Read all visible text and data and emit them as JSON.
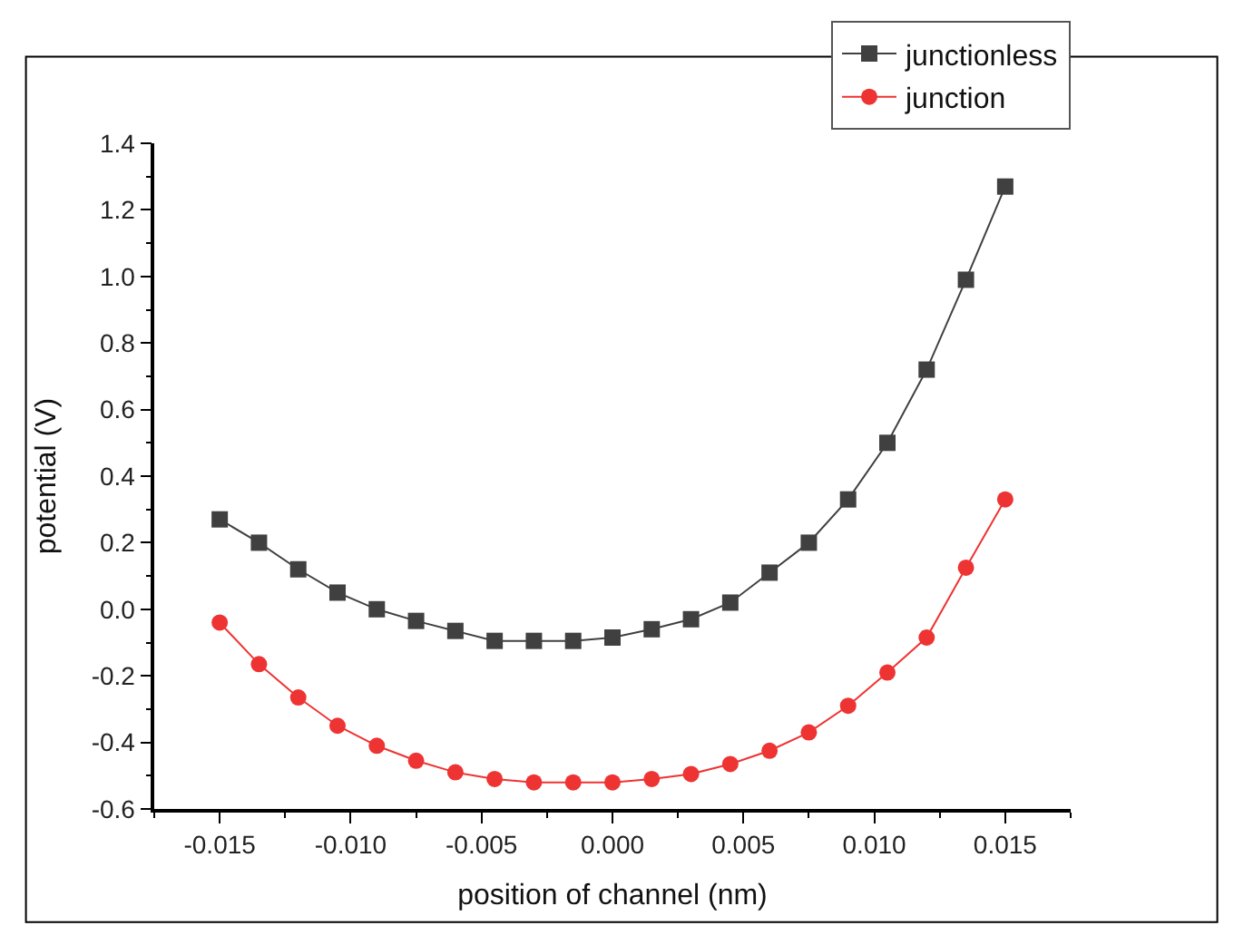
{
  "chart_data": {
    "type": "line",
    "xlabel": "position of channel (nm)",
    "ylabel": "potential (V)",
    "x": [
      -0.015,
      -0.0135,
      -0.012,
      -0.0105,
      -0.009,
      -0.0075,
      -0.006,
      -0.0045,
      -0.003,
      -0.0015,
      0.0,
      0.0015,
      0.003,
      0.0045,
      0.006,
      0.0075,
      0.009,
      0.0105,
      0.012,
      0.0135,
      0.015
    ],
    "series": [
      {
        "name": "junctionless",
        "color": "#404040",
        "marker": "square",
        "values": [
          0.27,
          0.2,
          0.12,
          0.05,
          0.0,
          -0.035,
          -0.065,
          -0.095,
          -0.095,
          -0.095,
          -0.085,
          -0.06,
          -0.03,
          0.02,
          0.11,
          0.2,
          0.33,
          0.5,
          0.72,
          0.99,
          1.27
        ]
      },
      {
        "name": "junction",
        "color": "#ee3333",
        "marker": "circle",
        "values": [
          -0.04,
          -0.165,
          -0.265,
          -0.35,
          -0.41,
          -0.455,
          -0.49,
          -0.51,
          -0.52,
          -0.52,
          -0.52,
          -0.51,
          -0.495,
          -0.465,
          -0.425,
          -0.37,
          -0.29,
          -0.19,
          -0.085,
          0.125,
          0.33
        ]
      }
    ],
    "xlim": [
      -0.0175,
      0.0175
    ],
    "xticks": [
      -0.015,
      {
        "value": -0.01,
        "label": "-0.010"
      },
      -0.005,
      {
        "value": 0,
        "label": "0.000"
      },
      0.005,
      {
        "value": 0.01,
        "label": "0.010"
      },
      0.015
    ],
    "ylim": [
      -0.6,
      1.4
    ],
    "yticks": [
      -0.6,
      -0.4,
      -0.2,
      {
        "value": 0,
        "label": "0.0"
      },
      0.2,
      0.4,
      0.6,
      0.8,
      {
        "value": 1,
        "label": "1.0"
      },
      1.2,
      1.4
    ],
    "legend": "top right",
    "line_style": "solid"
  }
}
